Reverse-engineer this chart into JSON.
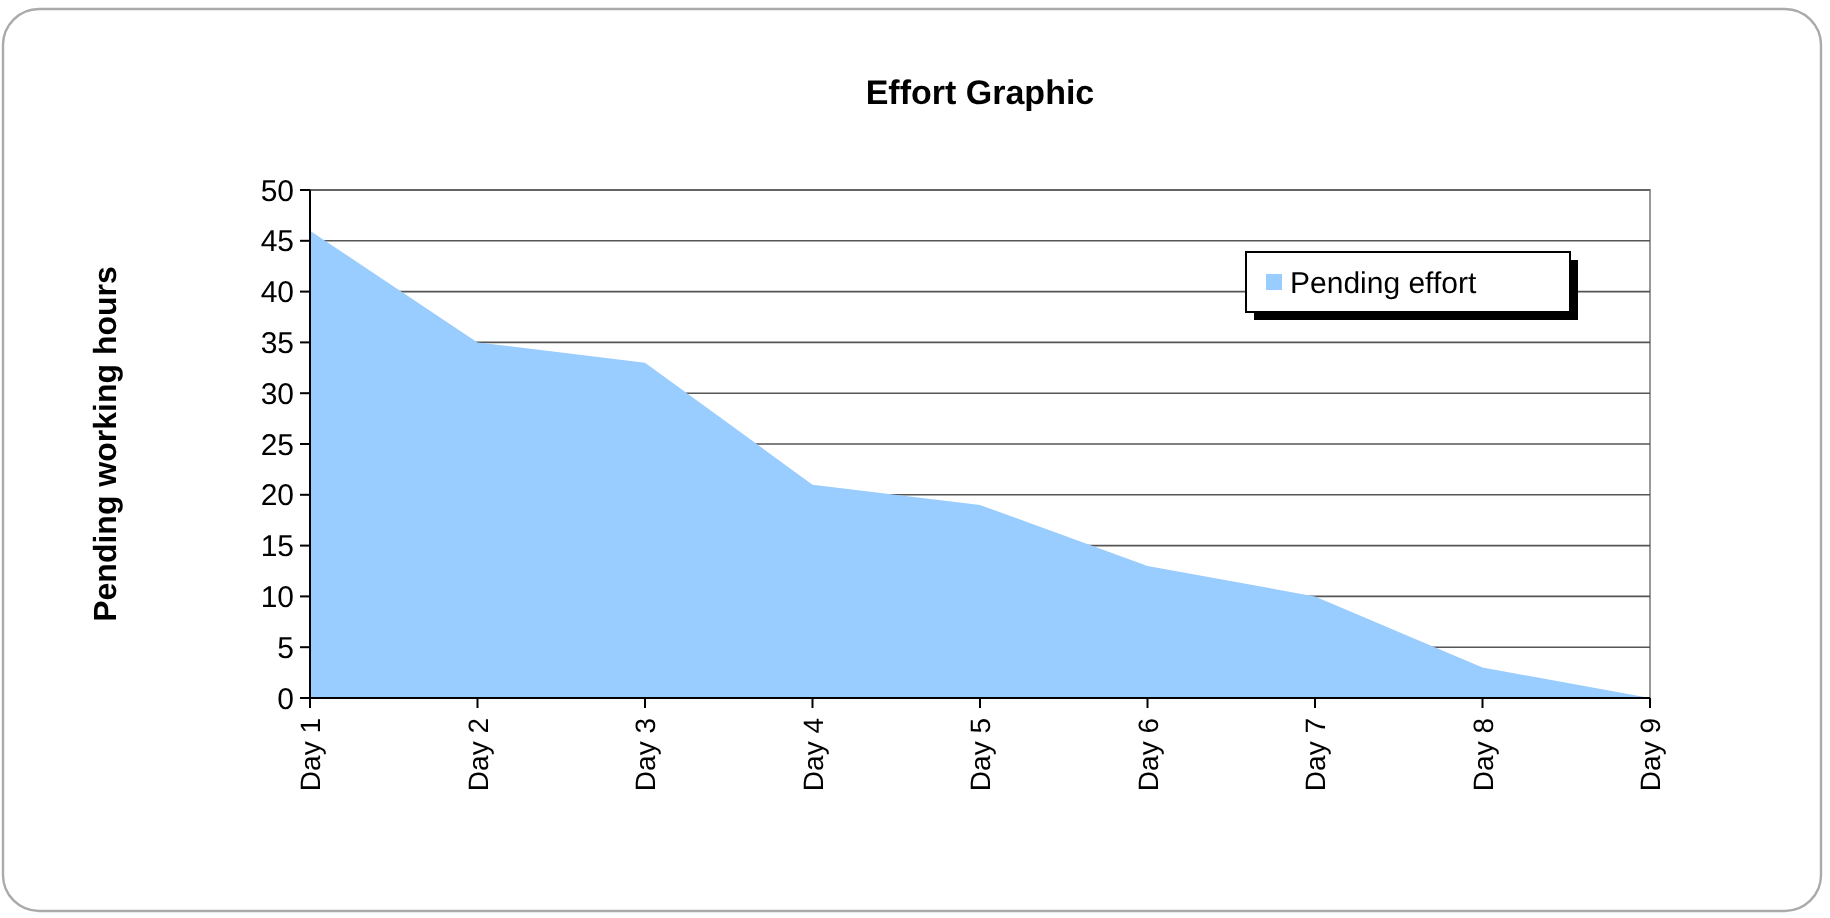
{
  "chart_data": {
    "type": "area",
    "title": "Effort Graphic",
    "ylabel": "Pending working hours",
    "categories": [
      "Day 1",
      "Day 2",
      "Day 3",
      "Day 4",
      "Day 5",
      "Day 6",
      "Day 7",
      "Day 8",
      "Day 9"
    ],
    "series": [
      {
        "name": "Pending effort",
        "color": "#99ccff",
        "values": [
          46,
          35,
          33,
          21,
          19,
          13,
          10,
          3,
          0
        ]
      }
    ],
    "ylim": [
      0,
      50
    ],
    "yticks": [
      0,
      5,
      10,
      15,
      20,
      25,
      30,
      35,
      40,
      45,
      50
    ],
    "grid": "y",
    "legend": "top right"
  }
}
